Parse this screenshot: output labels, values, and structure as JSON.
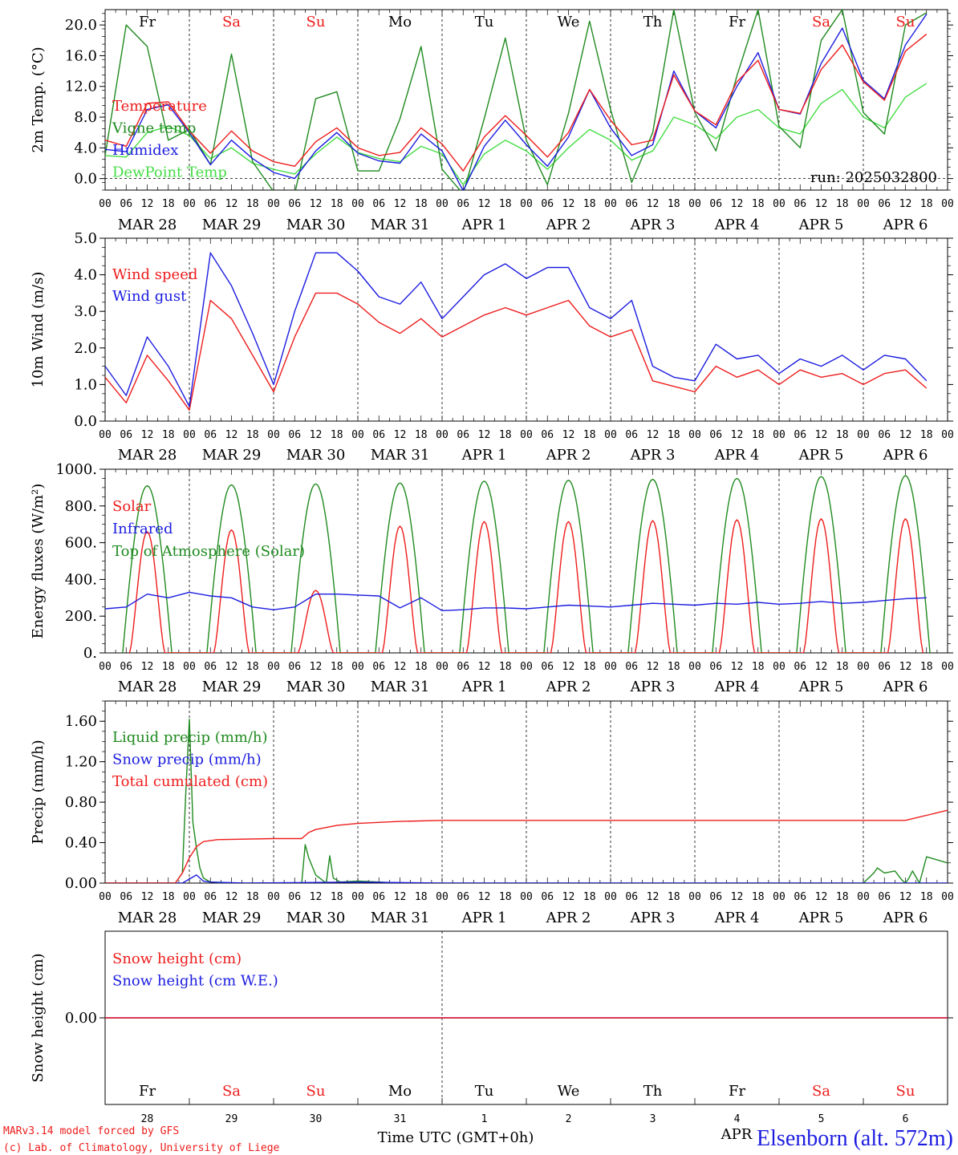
{
  "run_label": "run: 2025032800",
  "footer": {
    "model": "MARv3.14 model forced by GFS",
    "lab": "(c) Lab. of Climatology, University of Liege",
    "time_axis": "Time UTC (GMT+0h)",
    "station": "Elsenborn (alt. 572m)",
    "month": "APR"
  },
  "colors": {
    "red": "#ee1c1c",
    "blue": "#1c1ce0",
    "dark_green": "#1f8a1f",
    "light_green": "#44dd44",
    "weekend": "#ee1c1c",
    "weekday": "#000000"
  },
  "days": {
    "weekday": [
      "Fr",
      "Sa",
      "Su",
      "Mo",
      "Tu",
      "We",
      "Th",
      "Fr",
      "Sa",
      "Su"
    ],
    "weekend": [
      false,
      true,
      true,
      false,
      false,
      false,
      false,
      false,
      true,
      true
    ],
    "date_labels": [
      "MAR 28",
      "MAR 29",
      "MAR 30",
      "MAR 31",
      "APR  1",
      "APR  2",
      "APR  3",
      "APR  4",
      "APR  5",
      "APR  6"
    ],
    "day_numbers": [
      "28",
      "29",
      "30",
      "31",
      "1",
      "2",
      "3",
      "4",
      "5",
      "6"
    ],
    "hour_ticks": [
      "00",
      "06",
      "12",
      "18"
    ],
    "final_tick": "00"
  },
  "chart_data": [
    {
      "type": "line",
      "ylabel": "2m Temp. (°C)",
      "ylim": [
        -1.5,
        22
      ],
      "yticks": [
        "0.0",
        "4.0",
        "8.0",
        "12.0",
        "16.0",
        "20.0"
      ],
      "ytick_values": [
        0,
        4,
        8,
        12,
        16,
        20
      ],
      "zero_line": true,
      "grid": "dashed vertical at midnight",
      "series": [
        {
          "name": "Temperature",
          "color": "#ee1c1c",
          "x_hours": [
            0,
            6,
            12,
            18,
            24,
            30,
            36,
            42,
            48,
            54,
            60,
            66,
            72,
            78,
            84,
            90,
            96,
            102,
            108,
            114,
            120,
            126,
            132,
            138,
            144,
            150,
            156,
            162,
            168,
            174,
            180,
            186,
            192,
            198,
            204,
            210,
            216,
            222,
            228,
            234
          ],
          "values": [
            5.0,
            4.2,
            9.8,
            10.0,
            6.2,
            3.3,
            6.2,
            3.6,
            2.2,
            1.6,
            4.8,
            6.6,
            4.0,
            3.0,
            3.4,
            6.6,
            4.5,
            1.0,
            5.4,
            8.2,
            5.6,
            2.8,
            6.0,
            11.6,
            7.6,
            4.4,
            5.0,
            13.5,
            8.8,
            7.0,
            12.6,
            15.4,
            9.0,
            8.5,
            14.2,
            17.4,
            12.6,
            10.2,
            16.6,
            18.8
          ]
        },
        {
          "name": "Vigne temp",
          "color": "#1f8a1f",
          "x_hours": [
            0,
            6,
            12,
            18,
            24,
            30,
            36,
            42,
            48,
            54,
            60,
            66,
            72,
            78,
            84,
            90,
            96,
            102,
            108,
            114,
            120,
            126,
            132,
            138,
            144,
            150,
            156,
            162,
            168,
            174,
            180,
            186,
            192,
            198,
            204,
            210,
            216,
            222,
            228,
            234
          ],
          "values": [
            3.0,
            20.0,
            17.2,
            5.0,
            6.4,
            1.8,
            16.2,
            2.2,
            -1.7,
            -2.0,
            10.4,
            11.3,
            1.0,
            1.0,
            7.8,
            17.2,
            1.2,
            -2.0,
            7.8,
            18.3,
            5.0,
            -0.8,
            8.5,
            20.5,
            9.0,
            -0.5,
            6.0,
            22.0,
            8.6,
            3.6,
            13.4,
            22.0,
            6.8,
            4.0,
            18.0,
            22.0,
            8.6,
            5.8,
            20.0,
            21.6
          ]
        },
        {
          "name": "Humidex",
          "color": "#1c1ce0",
          "x_hours": [
            0,
            6,
            12,
            18,
            24,
            30,
            36,
            42,
            48,
            54,
            60,
            66,
            72,
            78,
            84,
            90,
            96,
            102,
            108,
            114,
            120,
            126,
            132,
            138,
            144,
            150,
            156,
            162,
            168,
            174,
            180,
            186,
            192,
            198,
            204,
            210,
            216,
            222,
            228,
            234
          ],
          "values": [
            3.8,
            3.5,
            9.0,
            9.6,
            6.0,
            1.8,
            5.0,
            2.6,
            0.8,
            0.0,
            3.6,
            6.0,
            3.3,
            2.3,
            2.0,
            5.8,
            3.6,
            -1.6,
            4.2,
            7.6,
            4.4,
            1.6,
            5.4,
            11.6,
            6.6,
            3.0,
            4.4,
            14.0,
            8.8,
            6.6,
            12.0,
            16.4,
            9.0,
            8.4,
            15.0,
            19.6,
            12.8,
            10.4,
            17.4,
            21.4
          ]
        },
        {
          "name": "DewPoint Temp",
          "color": "#44dd44",
          "x_hours": [
            0,
            6,
            12,
            18,
            24,
            30,
            36,
            42,
            48,
            54,
            60,
            66,
            72,
            78,
            84,
            90,
            96,
            102,
            108,
            114,
            120,
            126,
            132,
            138,
            144,
            150,
            156,
            162,
            168,
            174,
            180,
            186,
            192,
            198,
            204,
            210,
            216,
            222,
            228,
            234
          ],
          "values": [
            3.0,
            2.8,
            6.0,
            6.8,
            5.6,
            2.6,
            4.0,
            2.0,
            1.2,
            0.6,
            3.2,
            5.4,
            3.4,
            2.6,
            2.2,
            4.2,
            3.2,
            -0.8,
            3.2,
            5.0,
            3.6,
            1.2,
            4.0,
            6.4,
            5.0,
            2.4,
            3.6,
            8.0,
            7.0,
            5.2,
            8.0,
            9.0,
            6.6,
            5.8,
            9.8,
            11.6,
            8.0,
            6.6,
            10.6,
            12.4
          ]
        }
      ]
    },
    {
      "type": "line",
      "ylabel": "10m Wind (m/s)",
      "ylim": [
        0,
        5
      ],
      "yticks": [
        "0.0",
        "1.0",
        "2.0",
        "3.0",
        "4.0",
        "5.0"
      ],
      "ytick_values": [
        0,
        1,
        2,
        3,
        4,
        5
      ],
      "series": [
        {
          "name": "Wind speed",
          "color": "#ee1c1c",
          "x_hours": [
            0,
            6,
            12,
            18,
            24,
            30,
            36,
            42,
            48,
            54,
            60,
            66,
            72,
            78,
            84,
            90,
            96,
            102,
            108,
            114,
            120,
            126,
            132,
            138,
            144,
            150,
            156,
            162,
            168,
            174,
            180,
            186,
            192,
            198,
            204,
            210,
            216,
            222,
            228,
            234
          ],
          "values": [
            1.2,
            0.5,
            1.8,
            1.1,
            0.3,
            3.3,
            2.8,
            1.8,
            0.8,
            2.3,
            3.5,
            3.5,
            3.2,
            2.7,
            2.4,
            2.8,
            2.3,
            2.6,
            2.9,
            3.1,
            2.9,
            3.1,
            3.3,
            2.6,
            2.3,
            2.5,
            1.1,
            0.95,
            0.8,
            1.5,
            1.2,
            1.4,
            1.0,
            1.4,
            1.2,
            1.3,
            1.0,
            1.3,
            1.4,
            0.9
          ]
        },
        {
          "name": "Wind gust",
          "color": "#1c1ce0",
          "x_hours": [
            0,
            6,
            12,
            18,
            24,
            30,
            36,
            42,
            48,
            54,
            60,
            66,
            72,
            78,
            84,
            90,
            96,
            102,
            108,
            114,
            120,
            126,
            132,
            138,
            144,
            150,
            156,
            162,
            168,
            174,
            180,
            186,
            192,
            198,
            204,
            210,
            216,
            222,
            228,
            234
          ],
          "values": [
            1.5,
            0.7,
            2.3,
            1.5,
            0.4,
            4.6,
            3.7,
            2.4,
            1.0,
            3.0,
            4.6,
            4.6,
            4.1,
            3.4,
            3.2,
            3.8,
            2.8,
            3.4,
            4.0,
            4.3,
            3.9,
            4.2,
            4.2,
            3.1,
            2.8,
            3.3,
            1.5,
            1.2,
            1.1,
            2.1,
            1.7,
            1.8,
            1.3,
            1.7,
            1.5,
            1.8,
            1.4,
            1.8,
            1.7,
            1.1
          ]
        }
      ]
    },
    {
      "type": "line",
      "ylabel": "Energy fluxes (W/m²)",
      "ylim": [
        0,
        1000
      ],
      "yticks": [
        "0.",
        "200.",
        "400.",
        "600.",
        "800.",
        "1000."
      ],
      "ytick_values": [
        0,
        200,
        400,
        600,
        800,
        1000
      ],
      "series": [
        {
          "name": "Solar",
          "color": "#ee1c1c",
          "peak_hour": 12,
          "day_peaks": [
            660,
            670,
            340,
            690,
            715,
            715,
            720,
            725,
            730,
            730
          ]
        },
        {
          "name": "Infrared",
          "color": "#1c1ce0",
          "x_hours": [
            0,
            6,
            12,
            18,
            24,
            30,
            36,
            42,
            48,
            54,
            60,
            66,
            72,
            78,
            84,
            90,
            96,
            102,
            108,
            114,
            120,
            126,
            132,
            138,
            144,
            150,
            156,
            162,
            168,
            174,
            180,
            186,
            192,
            198,
            204,
            210,
            216,
            222,
            228,
            234
          ],
          "values": [
            240,
            250,
            320,
            300,
            330,
            310,
            300,
            250,
            235,
            250,
            320,
            320,
            315,
            310,
            245,
            300,
            230,
            235,
            245,
            245,
            240,
            250,
            260,
            255,
            250,
            260,
            270,
            265,
            260,
            270,
            265,
            275,
            265,
            270,
            280,
            270,
            275,
            285,
            295,
            300
          ]
        },
        {
          "name": "Top of Atmosphere (Solar)",
          "color": "#1f8a1f",
          "peak_hour": 12,
          "day_peaks": [
            910,
            915,
            920,
            925,
            935,
            940,
            945,
            950,
            960,
            965
          ]
        }
      ]
    },
    {
      "type": "line",
      "ylabel": "Precip (mm/h)",
      "ylim": [
        0,
        1.8
      ],
      "yticks": [
        "0.00",
        "0.40",
        "0.80",
        "1.20",
        "1.60"
      ],
      "ytick_values": [
        0,
        0.4,
        0.8,
        1.2,
        1.6
      ],
      "series": [
        {
          "name": "Liquid precip (mm/h)",
          "color": "#1f8a1f",
          "x_hours": [
            0,
            20,
            22,
            23,
            24,
            25,
            26,
            27,
            28,
            30,
            36,
            48,
            56,
            57,
            58,
            60,
            63,
            64,
            65,
            67,
            72,
            84,
            96,
            216,
            219,
            220,
            222,
            225,
            227,
            228,
            229,
            230,
            231,
            232,
            234,
            240
          ],
          "values": [
            0,
            0,
            0.1,
            0.9,
            1.62,
            0.6,
            0.35,
            0.15,
            0.05,
            0.01,
            0,
            0,
            0,
            0.38,
            0.25,
            0.08,
            0,
            0.27,
            0.05,
            0.01,
            0.02,
            0,
            0,
            0,
            0.1,
            0.15,
            0.1,
            0.12,
            0.03,
            0,
            0.05,
            0.12,
            0.06,
            0,
            0.26,
            0.2
          ]
        },
        {
          "name": "Snow precip (mm/h)",
          "color": "#1c1ce0",
          "x_hours": [
            0,
            22,
            24,
            26,
            28,
            30,
            40,
            72,
            96,
            240
          ],
          "values": [
            0,
            0,
            0.04,
            0.08,
            0.02,
            0.01,
            0,
            0.01,
            0,
            0
          ]
        },
        {
          "name": "Total cumulated (cm)",
          "color": "#ee1c1c",
          "x_hours": [
            0,
            20,
            22,
            24,
            26,
            28,
            32,
            48,
            56,
            58,
            60,
            66,
            72,
            84,
            96,
            228,
            234,
            240
          ],
          "values": [
            0,
            0,
            0.1,
            0.25,
            0.36,
            0.41,
            0.43,
            0.44,
            0.44,
            0.5,
            0.53,
            0.57,
            0.59,
            0.61,
            0.62,
            0.62,
            0.67,
            0.72
          ]
        }
      ]
    },
    {
      "type": "line",
      "ylabel": "Snow height (cm)",
      "ylim": [
        -1,
        1
      ],
      "yticks": [
        "0.00"
      ],
      "ytick_values": [
        0
      ],
      "series": [
        {
          "name": "Snow height (cm)",
          "color": "#ee1c1c",
          "x_hours": [
            0,
            240
          ],
          "values": [
            0,
            0
          ]
        },
        {
          "name": "Snow height (cm W.E.)",
          "color": "#1c1ce0",
          "x_hours": [
            0,
            240
          ],
          "values": [
            0,
            0
          ]
        }
      ]
    }
  ]
}
